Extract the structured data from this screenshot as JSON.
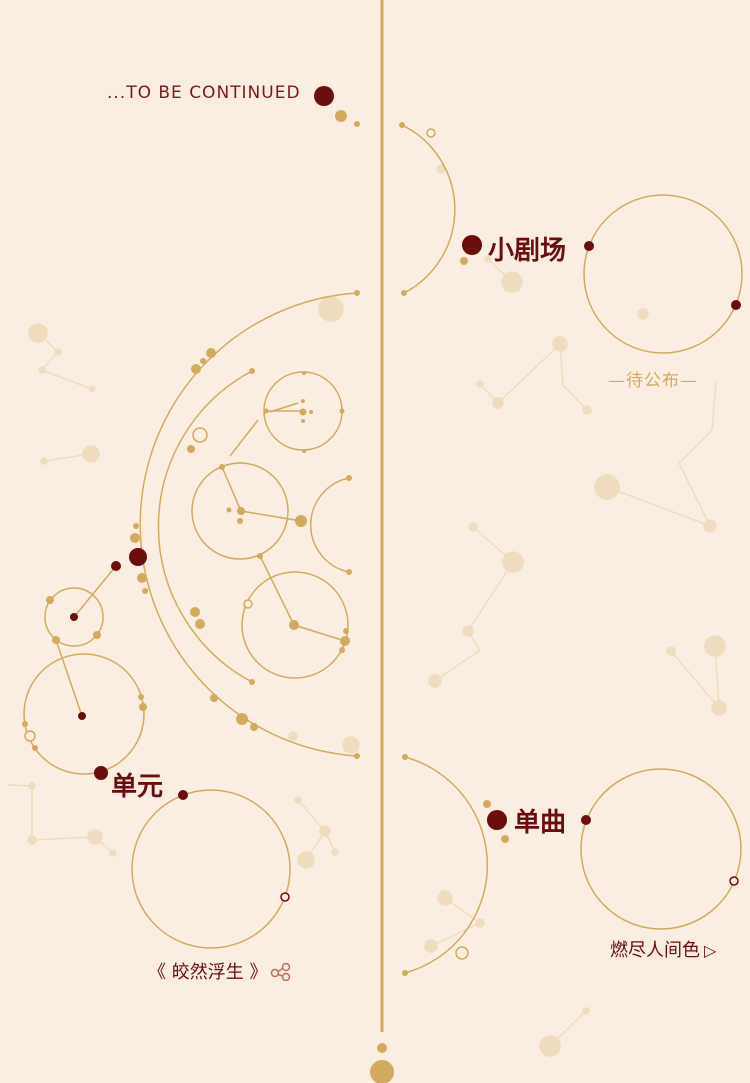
{
  "top_label": "...TO BE CONTINUED",
  "sections": {
    "xiaojuchang": {
      "title": "小剧场",
      "status": "—待公布—"
    },
    "danyuan": {
      "title": "单元",
      "subtitle": "《 皎然浮生 》"
    },
    "danqu": {
      "title": "单曲",
      "subtitle": "燃尽人间色"
    }
  },
  "colors": {
    "background": "#faeee2",
    "gold": "#d1aa5e",
    "dark_red": "#6b0d0d",
    "faint_gold": "#efdcbf"
  },
  "icons": {
    "unit_action": "share-nodes-icon",
    "single_action": "play-triangle-icon"
  }
}
